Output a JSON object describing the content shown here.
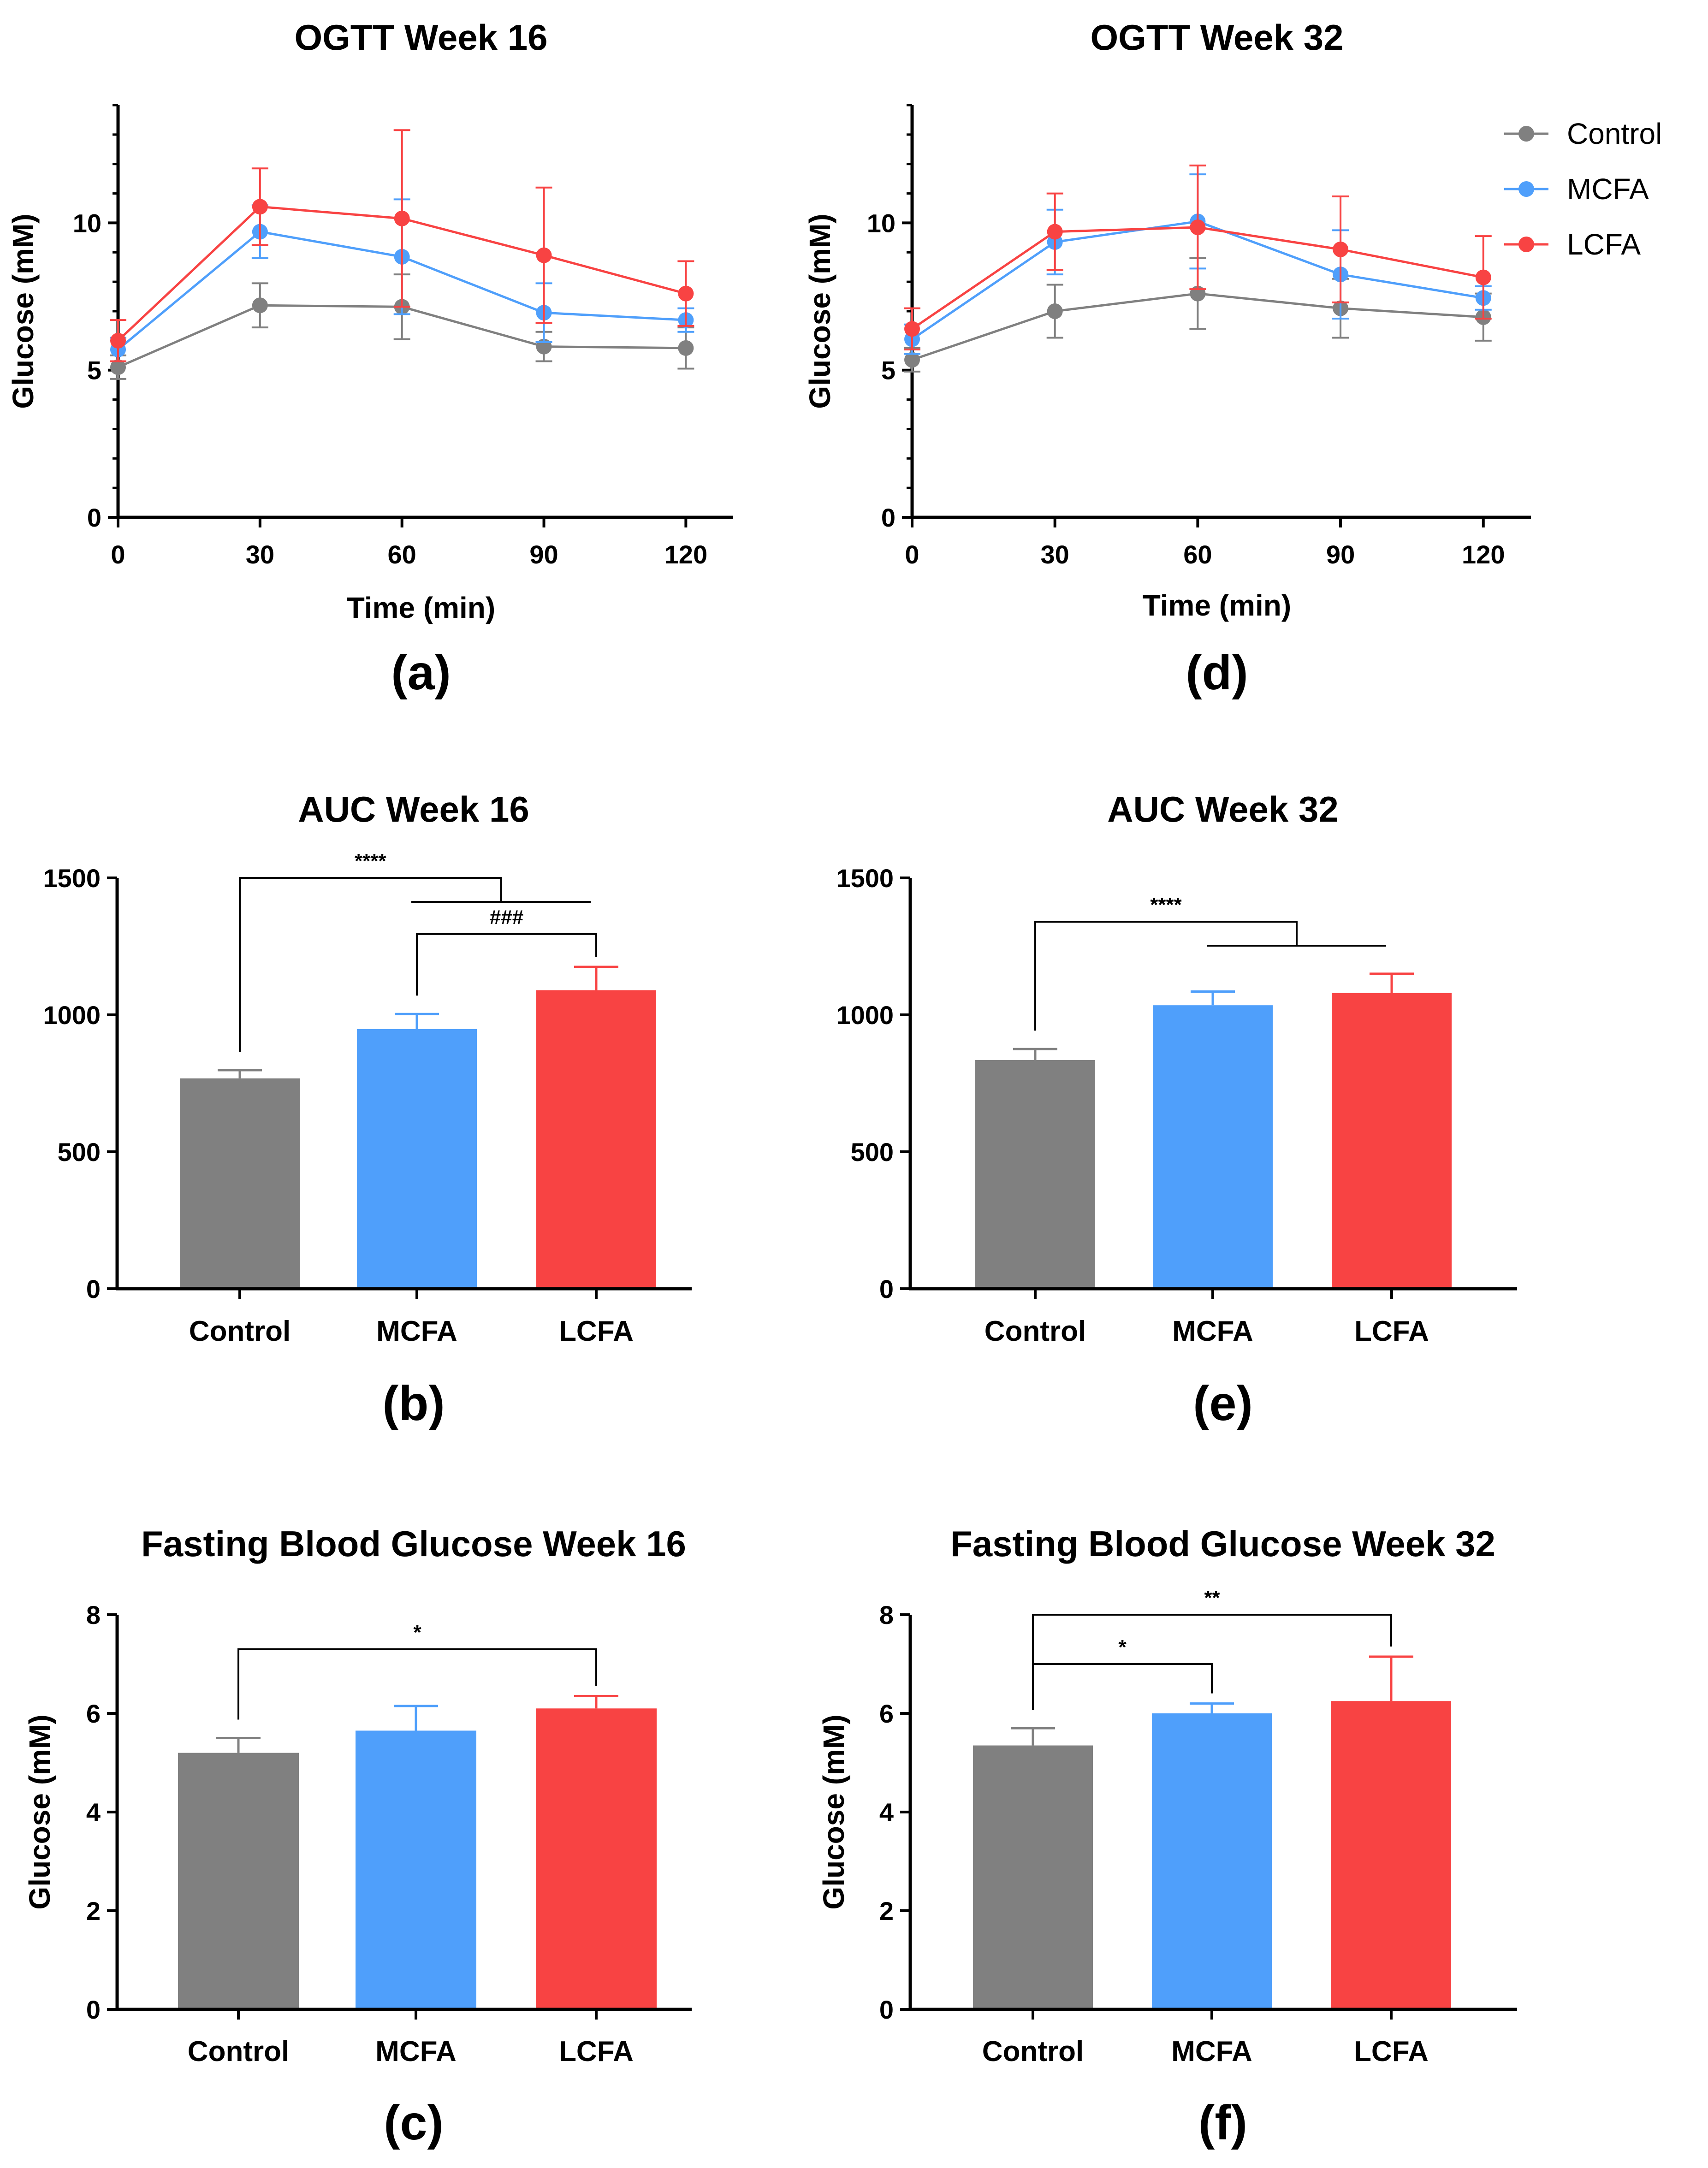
{
  "colors": {
    "Control": "#808080",
    "MCFA": "#4f9ffb",
    "LCFA": "#f84343"
  },
  "legend": {
    "position": "top-right",
    "items": [
      "Control",
      "MCFA",
      "LCFA"
    ]
  },
  "chart_data": [
    {
      "id": "a",
      "panel_label": "(a)",
      "type": "line",
      "title": "OGTT Week 16",
      "xlabel": "Time (min)",
      "ylabel": "Glucose (mM)",
      "x": [
        0,
        30,
        60,
        90,
        120
      ],
      "xlim": [
        0,
        130
      ],
      "ylim": [
        0,
        14
      ],
      "xticks": [
        0,
        30,
        60,
        90,
        120
      ],
      "yticks": [
        0,
        5,
        10
      ],
      "grid": false,
      "series": [
        {
          "name": "Control",
          "values": [
            5.1,
            7.2,
            7.15,
            5.8,
            5.75
          ],
          "err": [
            0.4,
            0.75,
            1.1,
            0.5,
            0.7
          ]
        },
        {
          "name": "MCFA",
          "values": [
            5.7,
            9.7,
            8.85,
            6.95,
            6.7
          ],
          "err": [
            0.4,
            0.9,
            1.95,
            1.0,
            0.4
          ]
        },
        {
          "name": "LCFA",
          "values": [
            6.0,
            10.55,
            10.15,
            8.9,
            7.6
          ],
          "err": [
            0.7,
            1.3,
            3.0,
            2.3,
            1.1
          ]
        }
      ]
    },
    {
      "id": "d",
      "panel_label": "(d)",
      "type": "line",
      "title": "OGTT Week 32",
      "xlabel": "Time (min)",
      "ylabel": "Glucose (mM)",
      "x": [
        0,
        30,
        60,
        90,
        120
      ],
      "xlim": [
        0,
        130
      ],
      "ylim": [
        0,
        14
      ],
      "xticks": [
        0,
        30,
        60,
        90,
        120
      ],
      "yticks": [
        0,
        5,
        10
      ],
      "grid": false,
      "series": [
        {
          "name": "Control",
          "values": [
            5.35,
            7.0,
            7.6,
            7.1,
            6.8
          ],
          "err": [
            0.4,
            0.9,
            1.2,
            1.0,
            0.8
          ]
        },
        {
          "name": "MCFA",
          "values": [
            6.05,
            9.35,
            10.05,
            8.25,
            7.45
          ],
          "err": [
            0.5,
            1.1,
            1.6,
            1.5,
            0.4
          ]
        },
        {
          "name": "LCFA",
          "values": [
            6.4,
            9.7,
            9.85,
            9.1,
            8.15
          ],
          "err": [
            0.7,
            1.3,
            2.1,
            1.8,
            1.4
          ]
        }
      ]
    },
    {
      "id": "b",
      "panel_label": "(b)",
      "type": "bar",
      "title": "AUC Week 16",
      "xlabel": "",
      "ylabel": "",
      "categories": [
        "Control",
        "MCFA",
        "LCFA"
      ],
      "values": [
        768,
        948,
        1090
      ],
      "err": [
        30,
        55,
        85
      ],
      "ylim": [
        0,
        1500
      ],
      "yticks": [
        0,
        500,
        1000,
        1500
      ],
      "grid": false,
      "significance": [
        {
          "label": "****",
          "from": "Control",
          "to": [
            "MCFA",
            "LCFA"
          ],
          "level": 1500
        },
        {
          "label": "###",
          "from": "MCFA",
          "to": [
            "LCFA"
          ],
          "level": 1295
        }
      ]
    },
    {
      "id": "e",
      "panel_label": "(e)",
      "type": "bar",
      "title": "AUC Week 32",
      "xlabel": "",
      "ylabel": "",
      "categories": [
        "Control",
        "MCFA",
        "LCFA"
      ],
      "values": [
        835,
        1035,
        1080
      ],
      "err": [
        40,
        50,
        70
      ],
      "ylim": [
        0,
        1500
      ],
      "yticks": [
        0,
        500,
        1000,
        1500
      ],
      "grid": false,
      "significance": [
        {
          "label": "****",
          "from": "Control",
          "to": [
            "MCFA",
            "LCFA"
          ],
          "level": 1340
        }
      ]
    },
    {
      "id": "c",
      "panel_label": "(c)",
      "type": "bar",
      "title": "Fasting Blood Glucose Week 16",
      "xlabel": "",
      "ylabel": "Glucose (mM)",
      "categories": [
        "Control",
        "MCFA",
        "LCFA"
      ],
      "values": [
        5.2,
        5.65,
        6.1
      ],
      "err": [
        0.3,
        0.5,
        0.25
      ],
      "ylim": [
        0,
        8
      ],
      "yticks": [
        0,
        2,
        4,
        6,
        8
      ],
      "grid": false,
      "significance": [
        {
          "label": "*",
          "from": "Control",
          "to": [
            "LCFA"
          ],
          "level": 7.3
        }
      ]
    },
    {
      "id": "f",
      "panel_label": "(f)",
      "type": "bar",
      "title": "Fasting Blood Glucose Week 32",
      "xlabel": "",
      "ylabel": "Glucose (mM)",
      "categories": [
        "Control",
        "MCFA",
        "LCFA"
      ],
      "values": [
        5.35,
        6.0,
        6.25
      ],
      "err": [
        0.35,
        0.2,
        0.9
      ],
      "ylim": [
        0,
        8
      ],
      "yticks": [
        0,
        2,
        4,
        6,
        8
      ],
      "grid": false,
      "significance": [
        {
          "label": "*",
          "from": "Control",
          "to": [
            "MCFA"
          ],
          "level": 7.0
        },
        {
          "label": "**",
          "from": "Control",
          "to": [
            "LCFA"
          ],
          "level": 8.0
        }
      ]
    }
  ]
}
